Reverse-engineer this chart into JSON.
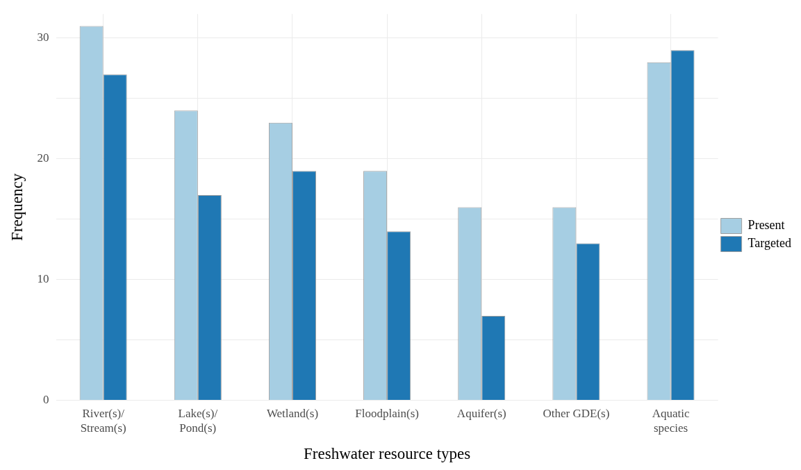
{
  "chart_data": {
    "type": "bar",
    "xlabel": "Freshwater resource types",
    "ylabel": "Frequency",
    "categories": [
      "River(s)/\nStream(s)",
      "Lake(s)/\nPond(s)",
      "Wetland(s)",
      "Floodplain(s)",
      "Aquifer(s)",
      "Other GDE(s)",
      "Aquatic\nspecies"
    ],
    "series": [
      {
        "name": "Present",
        "color": "#a6cee3",
        "values": [
          31,
          24,
          23,
          19,
          16,
          16,
          28
        ]
      },
      {
        "name": "Targeted",
        "color": "#1f78b4",
        "values": [
          27,
          17,
          19,
          14,
          7,
          13,
          29
        ]
      }
    ],
    "ylim": [
      0,
      32
    ],
    "yticks": [
      0,
      {
        "value": 5,
        "label": null
      },
      10,
      {
        "value": 15,
        "label": null
      },
      20,
      {
        "value": 25,
        "label": null
      },
      30
    ],
    "grid": true,
    "legend": "right"
  }
}
